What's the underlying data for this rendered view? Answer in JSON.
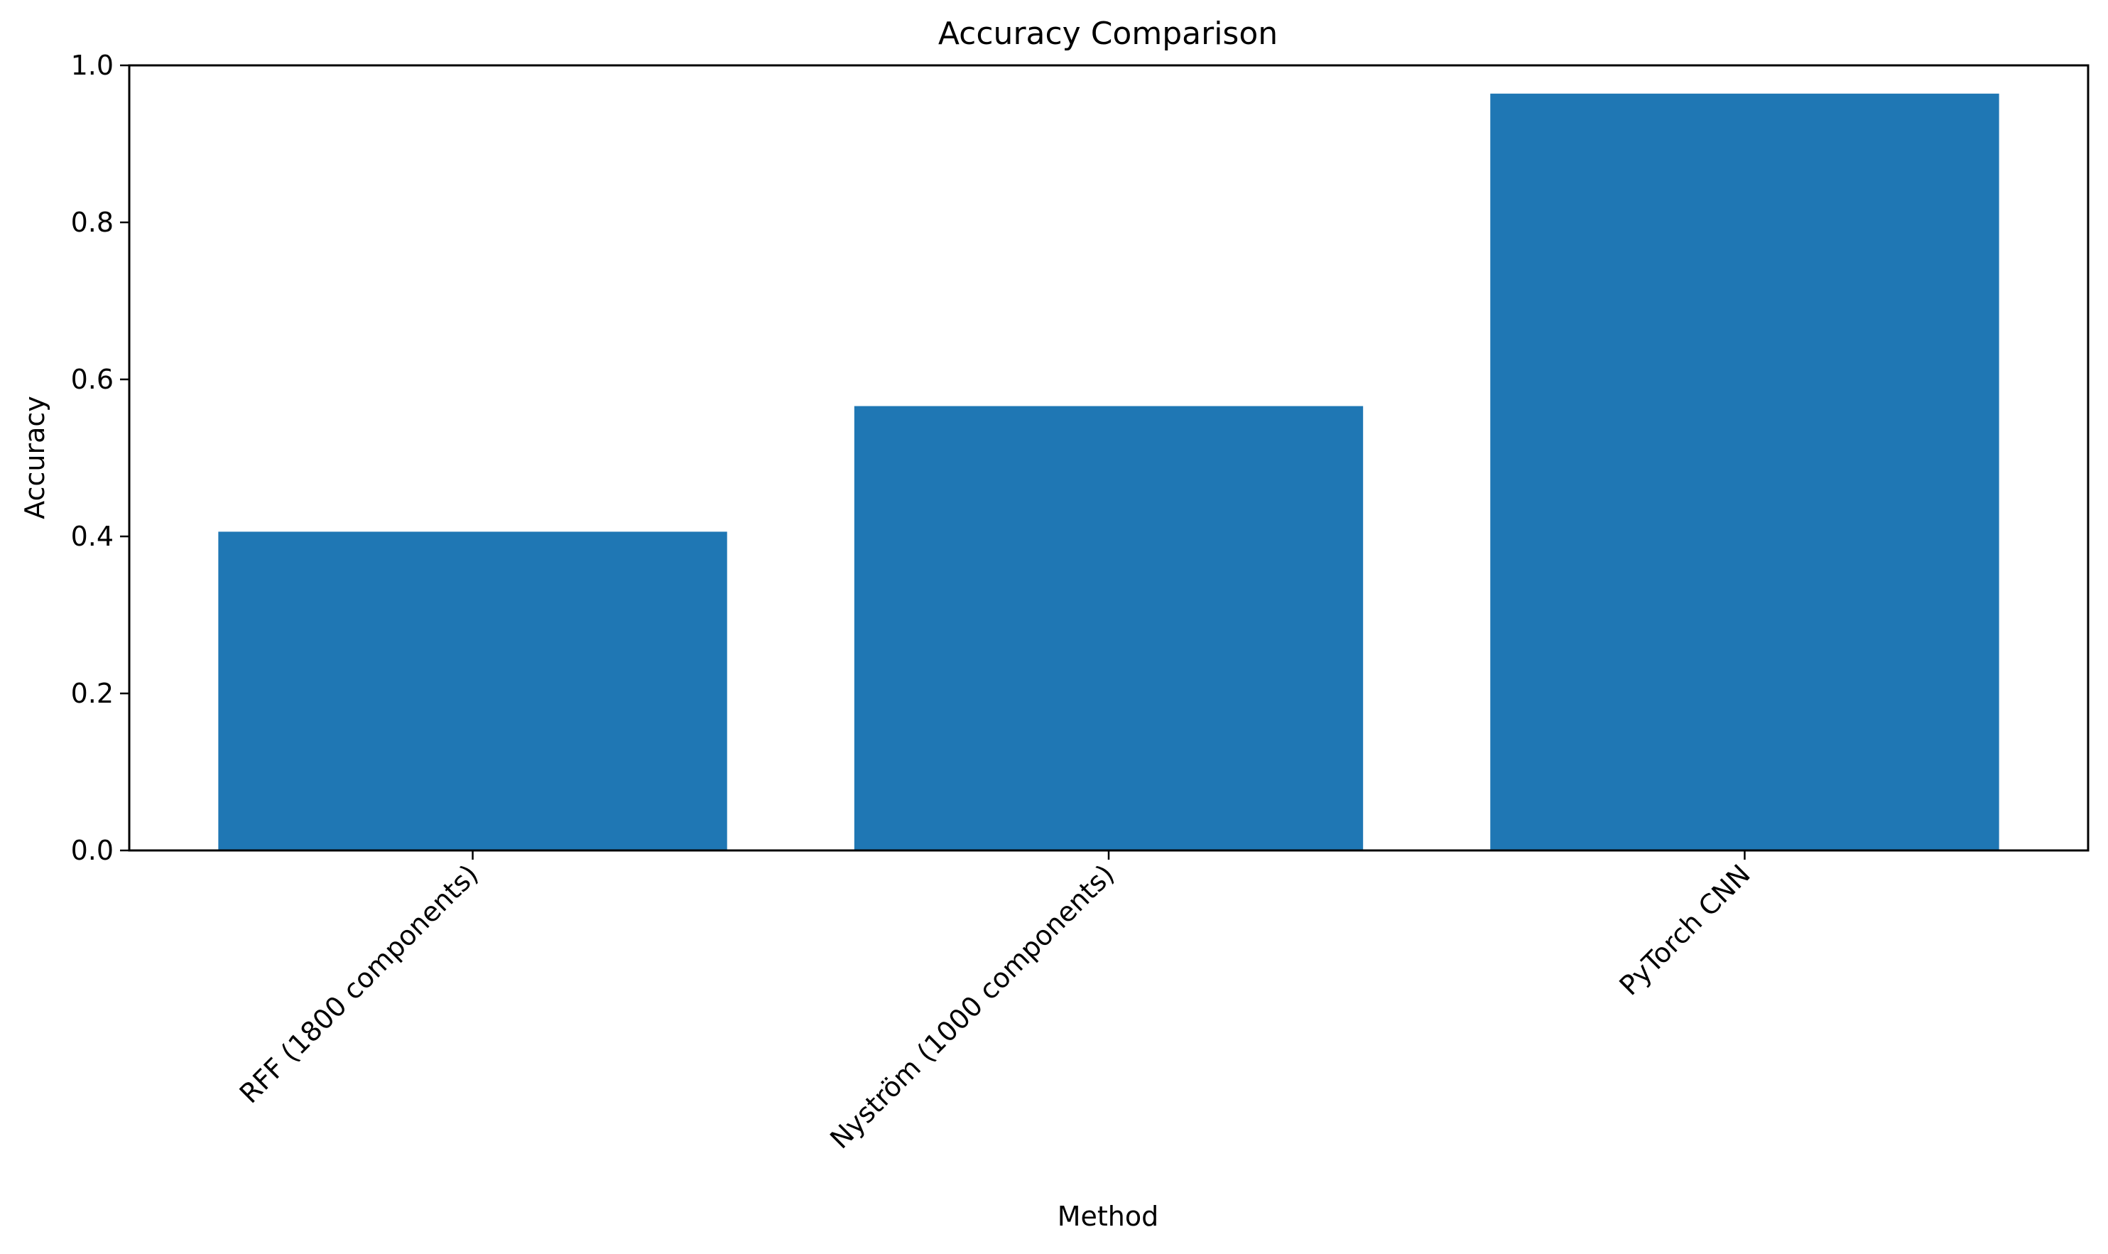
{
  "chart_data": {
    "type": "bar",
    "title": "Accuracy Comparison",
    "xlabel": "Method",
    "ylabel": "Accuracy",
    "categories": [
      "RFF (1800 components)",
      "Nyström (1000 components)",
      "PyTorch CNN"
    ],
    "values": [
      0.406,
      0.566,
      0.964
    ],
    "ylim": [
      0,
      1.0
    ],
    "yticks": [
      "0.0",
      "0.2",
      "0.4",
      "0.6",
      "0.8",
      "1.0"
    ],
    "bar_color": "#1f77b4",
    "grid": false,
    "legend": "none",
    "xtick_rotation": "45 degrees"
  }
}
